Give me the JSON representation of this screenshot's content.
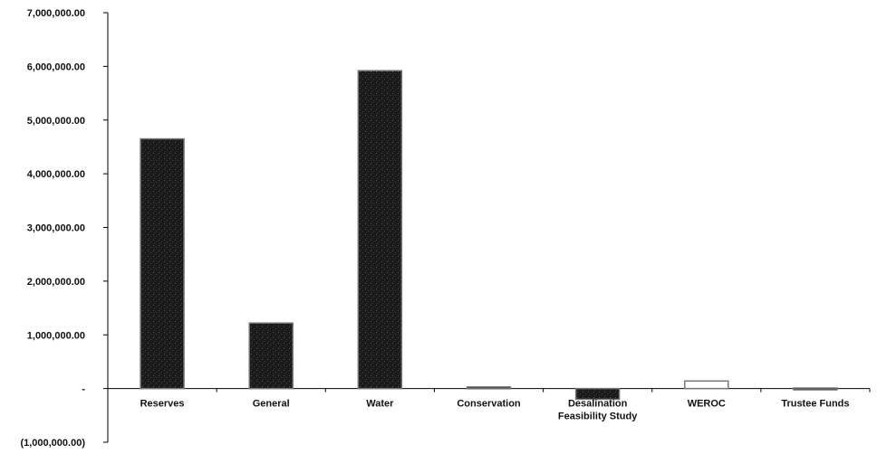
{
  "chart_data": {
    "type": "bar",
    "title": "",
    "xlabel": "",
    "ylabel": "",
    "categories": [
      [
        "Reserves"
      ],
      [
        "General"
      ],
      [
        "Water"
      ],
      [
        "Conservation"
      ],
      [
        "Desalination",
        "Feasibility Study"
      ],
      [
        "WEROC"
      ],
      [
        "Trustee Funds"
      ]
    ],
    "values": [
      4650000,
      1220000,
      5920000,
      30000,
      -200000,
      140000,
      10000
    ],
    "bar_colors": [
      "#1c1c1c",
      "#1c1c1c",
      "#1c1c1c",
      "#1c1c1c",
      "#1c1c1c",
      "#ffffff",
      "#1c1c1c"
    ],
    "ylim": [
      -1000000,
      7000000
    ],
    "yticks": [
      {
        "value": 7000000,
        "label": "7,000,000.00"
      },
      {
        "value": 6000000,
        "label": "6,000,000.00"
      },
      {
        "value": 5000000,
        "label": "5,000,000.00"
      },
      {
        "value": 4000000,
        "label": "4,000,000.00"
      },
      {
        "value": 3000000,
        "label": "3,000,000.00"
      },
      {
        "value": 2000000,
        "label": "2,000,000.00"
      },
      {
        "value": 1000000,
        "label": "1,000,000.00"
      },
      {
        "value": 0,
        "label": "-"
      },
      {
        "value": -1000000,
        "label": "(1,000,000.00)"
      }
    ],
    "grid": false,
    "legend": "none"
  }
}
